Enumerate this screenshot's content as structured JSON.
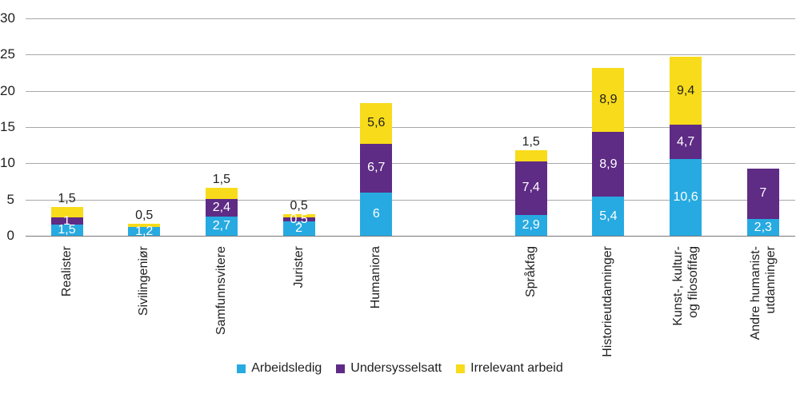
{
  "chart_data": {
    "type": "bar",
    "stacked": true,
    "categories": [
      "Realister",
      "Sivilingeniør",
      "Samfunnsvitere",
      "Jurister",
      "Humaniora",
      "Språkfag",
      "Historieutdanninger",
      "Kunst-, kultur-\nog filosofifag",
      "Andre humanist-\nutdanninger"
    ],
    "series": [
      {
        "name": "Arbeidsledig",
        "color": "#27AAE1",
        "values": [
          1.5,
          1.2,
          2.7,
          2,
          6,
          2.9,
          5.4,
          10.6,
          2.3
        ],
        "labels": [
          "1,5",
          "1,2",
          "2,7",
          "2",
          "6",
          "2,9",
          "5,4",
          "10,6",
          "2,3"
        ]
      },
      {
        "name": "Undersysselsatt",
        "color": "#5E2B85",
        "values": [
          1,
          0,
          2.4,
          0.5,
          6.7,
          7.4,
          8.9,
          4.7,
          7
        ],
        "labels": [
          "1",
          "",
          "2,4",
          "0,5",
          "6,7",
          "7,4",
          "8,9",
          "4,7",
          "7"
        ]
      },
      {
        "name": "Irrelevant arbeid",
        "color": "#F8DB1A",
        "values": [
          1.5,
          0.5,
          1.5,
          0.5,
          5.6,
          1.5,
          8.9,
          9.4,
          0
        ],
        "labels": [
          "1,5",
          "0,5",
          "1,5",
          "0,5",
          "5,6",
          "1,5",
          "8,9",
          "9,4",
          ""
        ]
      }
    ],
    "y_ticks": [
      "0",
      "5",
      "10",
      "15",
      "20",
      "25",
      "30"
    ],
    "ylim": [
      0,
      30
    ],
    "grid": true,
    "legend_position": "bottom",
    "bar_slots": [
      0,
      1,
      2,
      3,
      4,
      6,
      7,
      8,
      9
    ]
  }
}
